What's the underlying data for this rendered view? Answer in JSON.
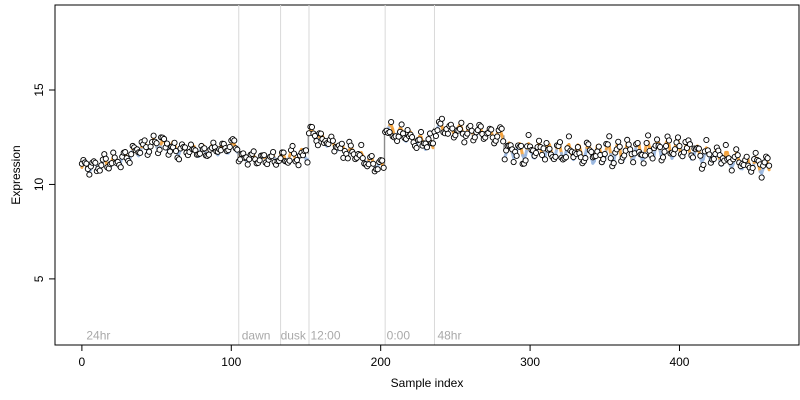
{
  "chart_data": {
    "type": "scatter",
    "xlabel": "Sample index",
    "ylabel": "Expression",
    "xlim": [
      -18,
      480
    ],
    "ylim": [
      1.5,
      19.5
    ],
    "x_ticks": [
      0,
      100,
      200,
      300,
      400
    ],
    "y_ticks": [
      5,
      10,
      15
    ],
    "grid": false,
    "legend": "none",
    "colors": {
      "points_fill": "#ffffff",
      "points_stroke": "#000000",
      "series_orange": "#f5a23a",
      "series_blue": "#9bb8e0",
      "vline": "#d9d9d9",
      "segment_line": "#8c8c8c",
      "annotation_text": "#a9a9a9"
    },
    "vertical_markers": [
      {
        "x": 105,
        "label": ""
      },
      {
        "x": 133,
        "label": ""
      },
      {
        "x": 152,
        "label": ""
      },
      {
        "x": 203,
        "label": ""
      },
      {
        "x": 236,
        "label": ""
      }
    ],
    "annotations": [
      {
        "x": 3,
        "y": 2.0,
        "text": "24hr"
      },
      {
        "x": 107,
        "y": 2.0,
        "text": "dawn"
      },
      {
        "x": 133,
        "y": 2.0,
        "text": "dusk"
      },
      {
        "x": 153,
        "y": 2.0,
        "text": "12:00"
      },
      {
        "x": 204,
        "y": 2.0,
        "text": "0:00"
      },
      {
        "x": 238,
        "y": 2.0,
        "text": "48hr"
      }
    ],
    "segments": [
      {
        "x_start": 0,
        "x_end": 104,
        "base": 10.9,
        "end": 12.0,
        "bump_x": 48,
        "bump_h": 0.7,
        "amp": 0.3,
        "noise": 0.25
      },
      {
        "x_start": 105,
        "x_end": 132,
        "base": 11.4,
        "end": 11.4,
        "amp": 0.2,
        "noise": 0.15
      },
      {
        "x_start": 133,
        "x_end": 151,
        "base": 11.4,
        "end": 11.6,
        "amp": 0.3,
        "noise": 0.3
      },
      {
        "x_start": 152,
        "x_end": 202,
        "base": 12.7,
        "end": 10.9,
        "amp": 0.25,
        "noise": 0.35
      },
      {
        "x_start": 203,
        "x_end": 235,
        "base": 13.0,
        "end": 12.0,
        "amp": 0.3,
        "noise": 0.35
      },
      {
        "x_start": 236,
        "x_end": 282,
        "base": 13.0,
        "end": 12.6,
        "amp": 0.3,
        "noise": 0.25
      },
      {
        "x_start": 283,
        "x_end": 340,
        "base": 11.8,
        "end": 11.7,
        "amp": 0.4,
        "noise": 0.4
      },
      {
        "x_start": 341,
        "x_end": 401,
        "base": 11.6,
        "end": 11.9,
        "amp": 0.5,
        "noise": 0.35
      },
      {
        "x_start": 402,
        "x_end": 460,
        "base": 11.8,
        "end": 10.9,
        "amp": 0.4,
        "noise": 0.35
      }
    ]
  }
}
